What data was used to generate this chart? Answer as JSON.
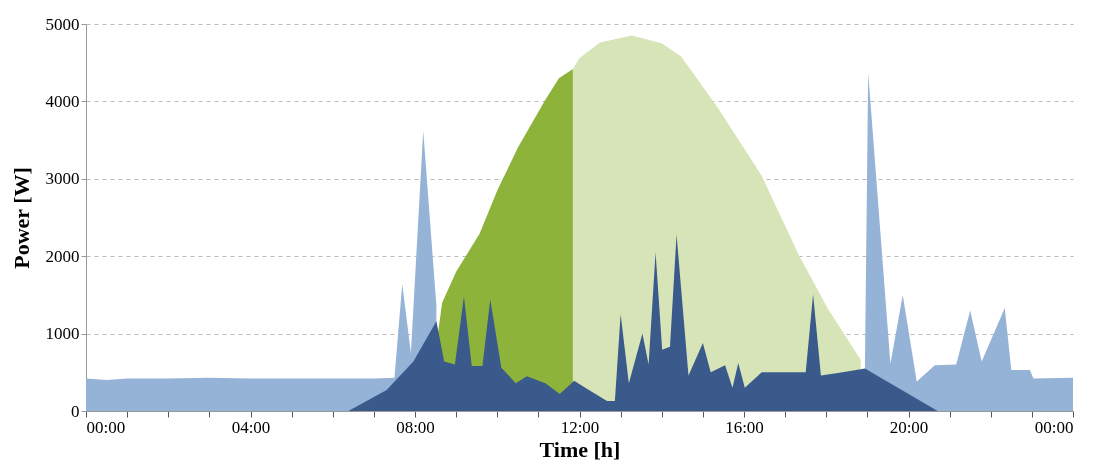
{
  "chart_data": {
    "type": "area",
    "xlabel": "Time [h]",
    "ylabel": "Power [W]",
    "xlim": [
      0,
      24
    ],
    "ylim": [
      0,
      5000
    ],
    "yticks": [
      0,
      1000,
      2000,
      3000,
      4000,
      5000
    ],
    "xticks": [
      {
        "value": 0,
        "label": "00:00"
      },
      {
        "value": 1,
        "label": null
      },
      {
        "value": 2,
        "label": null
      },
      {
        "value": 3,
        "label": null
      },
      {
        "value": 4,
        "label": "04:00"
      },
      {
        "value": 5,
        "label": null
      },
      {
        "value": 6,
        "label": null
      },
      {
        "value": 7,
        "label": null
      },
      {
        "value": 8,
        "label": "08:00"
      },
      {
        "value": 9,
        "label": null
      },
      {
        "value": 10,
        "label": null
      },
      {
        "value": 11,
        "label": null
      },
      {
        "value": 12,
        "label": "12:00"
      },
      {
        "value": 13,
        "label": null
      },
      {
        "value": 14,
        "label": null
      },
      {
        "value": 15,
        "label": null
      },
      {
        "value": 16,
        "label": "16:00"
      },
      {
        "value": 17,
        "label": null
      },
      {
        "value": 18,
        "label": null
      },
      {
        "value": 19,
        "label": null
      },
      {
        "value": 20,
        "label": "20:00"
      },
      {
        "value": 21,
        "label": null
      },
      {
        "value": 22,
        "label": null
      },
      {
        "value": 23,
        "label": null
      },
      {
        "value": 24,
        "label": "00:00"
      }
    ],
    "grid": "y",
    "series": [
      {
        "color": "#8db33a",
        "x": [
          8.3,
          8.66,
          9.0,
          9.57,
          10.0,
          10.5,
          11.17,
          11.5,
          11.84
        ],
        "values": [
          0,
          1400,
          1800,
          2290,
          2850,
          3400,
          4020,
          4300,
          4420
        ]
      },
      {
        "color": "#d7e4b8",
        "x": [
          11.84,
          12.0,
          12.5,
          13.27,
          14.0,
          14.47,
          15.36,
          16.43,
          17.33,
          18.04,
          18.84
        ],
        "values": [
          4420,
          4560,
          4760,
          4850,
          4750,
          4580,
          3920,
          3040,
          2020,
          1320,
          660
        ]
      },
      {
        "color": "#95b3d7",
        "x": [
          0,
          0.5,
          1,
          2,
          3,
          4,
          5,
          6,
          7,
          7.5,
          7.69,
          7.9,
          8.2,
          8.52,
          8.71,
          8.97,
          9.19,
          9.38,
          9.64,
          9.83,
          10.1,
          10.45,
          10.72,
          11.17,
          11.52,
          11.87,
          12.14,
          12.67,
          12.86,
          13.0,
          13.2,
          13.53,
          13.68,
          13.85,
          14.01,
          14.2,
          14.36,
          14.65,
          15.0,
          15.19,
          15.54,
          15.72,
          15.86,
          16.02,
          16.43,
          17.5,
          17.68,
          17.87,
          18.4,
          18.94,
          19.02,
          19.56,
          19.86,
          20.2,
          20.64,
          21.16,
          21.5,
          21.78,
          22.34,
          22.5,
          22.95,
          23.04,
          24
        ],
        "values": [
          420,
          400,
          420,
          420,
          430,
          420,
          420,
          420,
          420,
          430,
          1640,
          750,
          3620,
          1360,
          null,
          null,
          null,
          null,
          null,
          null,
          null,
          null,
          null,
          null,
          null,
          null,
          null,
          null,
          null,
          null,
          null,
          null,
          null,
          null,
          null,
          null,
          null,
          null,
          null,
          null,
          null,
          null,
          null,
          null,
          null,
          null,
          null,
          null,
          null,
          550,
          4370,
          610,
          1500,
          380,
          590,
          600,
          1300,
          640,
          1330,
          530,
          530,
          420,
          430
        ]
      },
      {
        "color": "#3a5a8c",
        "x": [
          6.38,
          7.31,
          7.96,
          8.52,
          8.71,
          8.97,
          9.19,
          9.38,
          9.64,
          9.83,
          10.1,
          10.45,
          10.72,
          11.17,
          11.52,
          11.87,
          12.14,
          12.67,
          12.86,
          13.0,
          13.2,
          13.53,
          13.68,
          13.85,
          14.01,
          14.2,
          14.36,
          14.65,
          15.0,
          15.19,
          15.54,
          15.72,
          15.86,
          16.02,
          16.43,
          17.5,
          17.68,
          17.87,
          18.4,
          18.94,
          20.71
        ],
        "values": [
          0,
          270,
          640,
          1160,
          640,
          600,
          1480,
          580,
          580,
          1440,
          560,
          360,
          450,
          360,
          220,
          390,
          300,
          130,
          130,
          1250,
          360,
          1000,
          600,
          2050,
          790,
          830,
          2280,
          460,
          880,
          500,
          590,
          300,
          620,
          300,
          500,
          500,
          1510,
          460,
          500,
          550,
          0
        ]
      }
    ]
  }
}
